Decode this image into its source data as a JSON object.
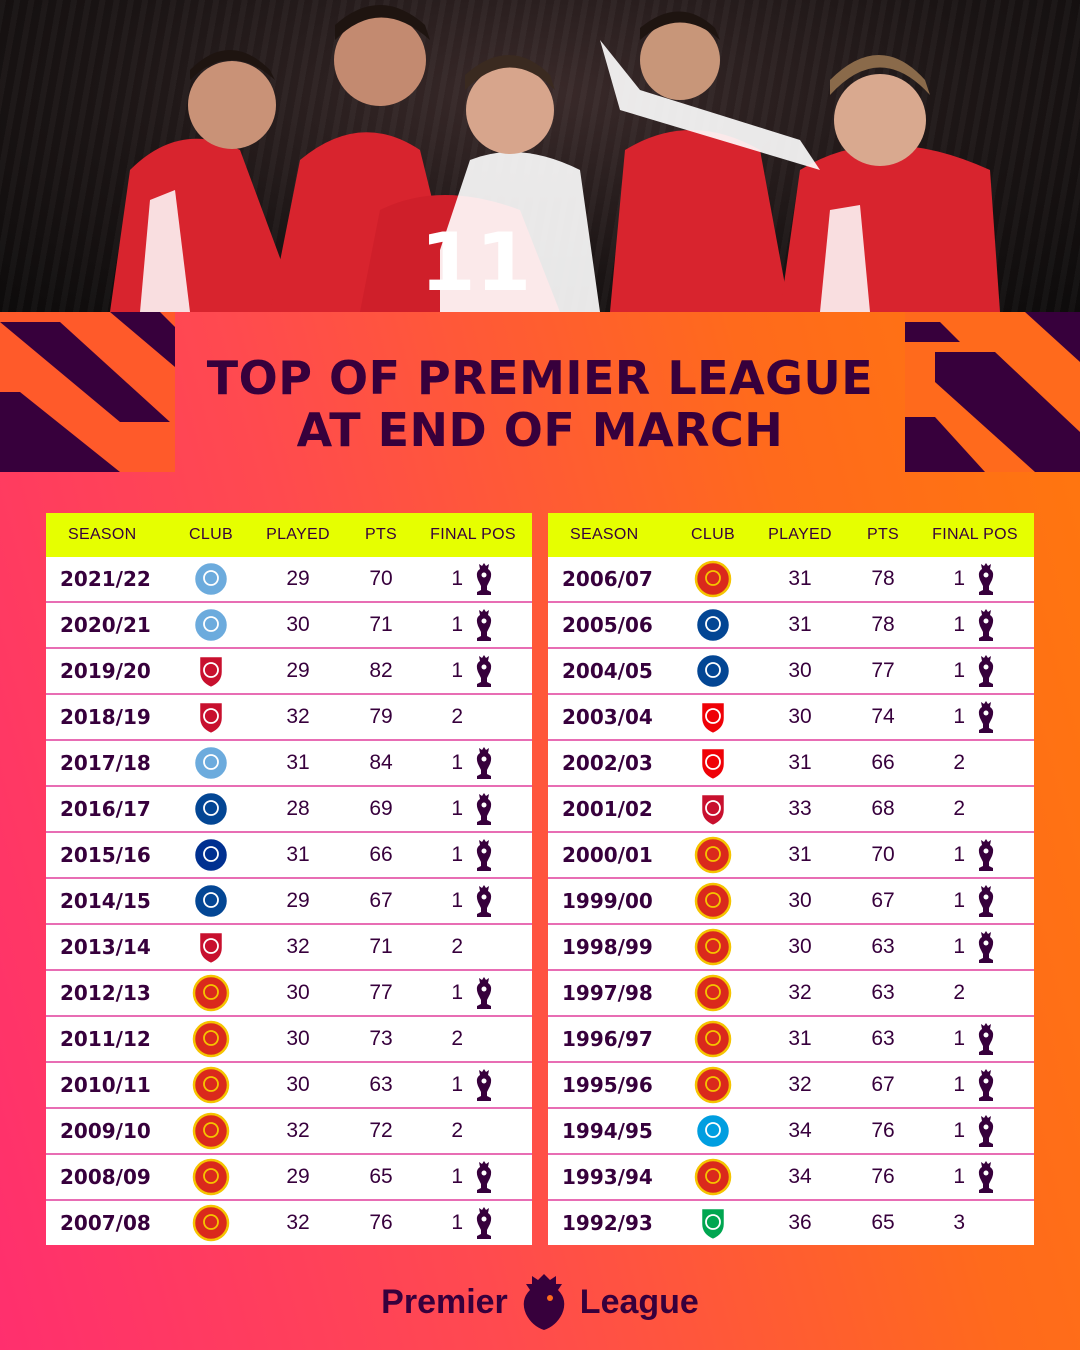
{
  "title": {
    "line1": "TOP OF PREMIER LEAGUE",
    "line2": "AT END OF MARCH"
  },
  "headers": {
    "season": "SEASON",
    "club": "CLUB",
    "played": "PLAYED",
    "pts": "PTS",
    "final_pos": "FINAL POS"
  },
  "club_colors": {
    "man-city": "#6cabdd",
    "liverpool": "#c8102e",
    "chelsea": "#034694",
    "leicester": "#003090",
    "man-utd": "#da291c",
    "arsenal": "#ef0107",
    "blackburn": "#009ee0",
    "norwich": "#00a650"
  },
  "left_rows": [
    {
      "season": "2021/22",
      "club": "man-city",
      "played": "29",
      "pts": "70",
      "pos": "1",
      "champion": true
    },
    {
      "season": "2020/21",
      "club": "man-city",
      "played": "30",
      "pts": "71",
      "pos": "1",
      "champion": true
    },
    {
      "season": "2019/20",
      "club": "liverpool",
      "played": "29",
      "pts": "82",
      "pos": "1",
      "champion": true
    },
    {
      "season": "2018/19",
      "club": "liverpool",
      "played": "32",
      "pts": "79",
      "pos": "2",
      "champion": false
    },
    {
      "season": "2017/18",
      "club": "man-city",
      "played": "31",
      "pts": "84",
      "pos": "1",
      "champion": true
    },
    {
      "season": "2016/17",
      "club": "chelsea",
      "played": "28",
      "pts": "69",
      "pos": "1",
      "champion": true
    },
    {
      "season": "2015/16",
      "club": "leicester",
      "played": "31",
      "pts": "66",
      "pos": "1",
      "champion": true
    },
    {
      "season": "2014/15",
      "club": "chelsea",
      "played": "29",
      "pts": "67",
      "pos": "1",
      "champion": true
    },
    {
      "season": "2013/14",
      "club": "liverpool",
      "played": "32",
      "pts": "71",
      "pos": "2",
      "champion": false
    },
    {
      "season": "2012/13",
      "club": "man-utd",
      "played": "30",
      "pts": "77",
      "pos": "1",
      "champion": true
    },
    {
      "season": "2011/12",
      "club": "man-utd",
      "played": "30",
      "pts": "73",
      "pos": "2",
      "champion": false
    },
    {
      "season": "2010/11",
      "club": "man-utd",
      "played": "30",
      "pts": "63",
      "pos": "1",
      "champion": true
    },
    {
      "season": "2009/10",
      "club": "man-utd",
      "played": "32",
      "pts": "72",
      "pos": "2",
      "champion": false
    },
    {
      "season": "2008/09",
      "club": "man-utd",
      "played": "29",
      "pts": "65",
      "pos": "1",
      "champion": true
    },
    {
      "season": "2007/08",
      "club": "man-utd",
      "played": "32",
      "pts": "76",
      "pos": "1",
      "champion": true
    }
  ],
  "right_rows": [
    {
      "season": "2006/07",
      "club": "man-utd",
      "played": "31",
      "pts": "78",
      "pos": "1",
      "champion": true
    },
    {
      "season": "2005/06",
      "club": "chelsea",
      "played": "31",
      "pts": "78",
      "pos": "1",
      "champion": true
    },
    {
      "season": "2004/05",
      "club": "chelsea",
      "played": "30",
      "pts": "77",
      "pos": "1",
      "champion": true
    },
    {
      "season": "2003/04",
      "club": "arsenal",
      "played": "30",
      "pts": "74",
      "pos": "1",
      "champion": true
    },
    {
      "season": "2002/03",
      "club": "arsenal",
      "played": "31",
      "pts": "66",
      "pos": "2",
      "champion": false
    },
    {
      "season": "2001/02",
      "club": "liverpool",
      "played": "33",
      "pts": "68",
      "pos": "2",
      "champion": false
    },
    {
      "season": "2000/01",
      "club": "man-utd",
      "played": "31",
      "pts": "70",
      "pos": "1",
      "champion": true
    },
    {
      "season": "1999/00",
      "club": "man-utd",
      "played": "30",
      "pts": "67",
      "pos": "1",
      "champion": true
    },
    {
      "season": "1998/99",
      "club": "man-utd",
      "played": "30",
      "pts": "63",
      "pos": "1",
      "champion": true
    },
    {
      "season": "1997/98",
      "club": "man-utd",
      "played": "32",
      "pts": "63",
      "pos": "2",
      "champion": false
    },
    {
      "season": "1996/97",
      "club": "man-utd",
      "played": "31",
      "pts": "63",
      "pos": "1",
      "champion": true
    },
    {
      "season": "1995/96",
      "club": "man-utd",
      "played": "32",
      "pts": "67",
      "pos": "1",
      "champion": true
    },
    {
      "season": "1994/95",
      "club": "blackburn",
      "played": "34",
      "pts": "76",
      "pos": "1",
      "champion": true
    },
    {
      "season": "1993/94",
      "club": "man-utd",
      "played": "34",
      "pts": "76",
      "pos": "1",
      "champion": true
    },
    {
      "season": "1992/93",
      "club": "norwich",
      "played": "36",
      "pts": "65",
      "pos": "3",
      "champion": false
    }
  ],
  "footer": {
    "word1": "Premier",
    "word2": "League"
  },
  "theme": {
    "purple": "#37003c",
    "header_yellow": "#e6ff00",
    "row_divider": "#e86db4"
  }
}
